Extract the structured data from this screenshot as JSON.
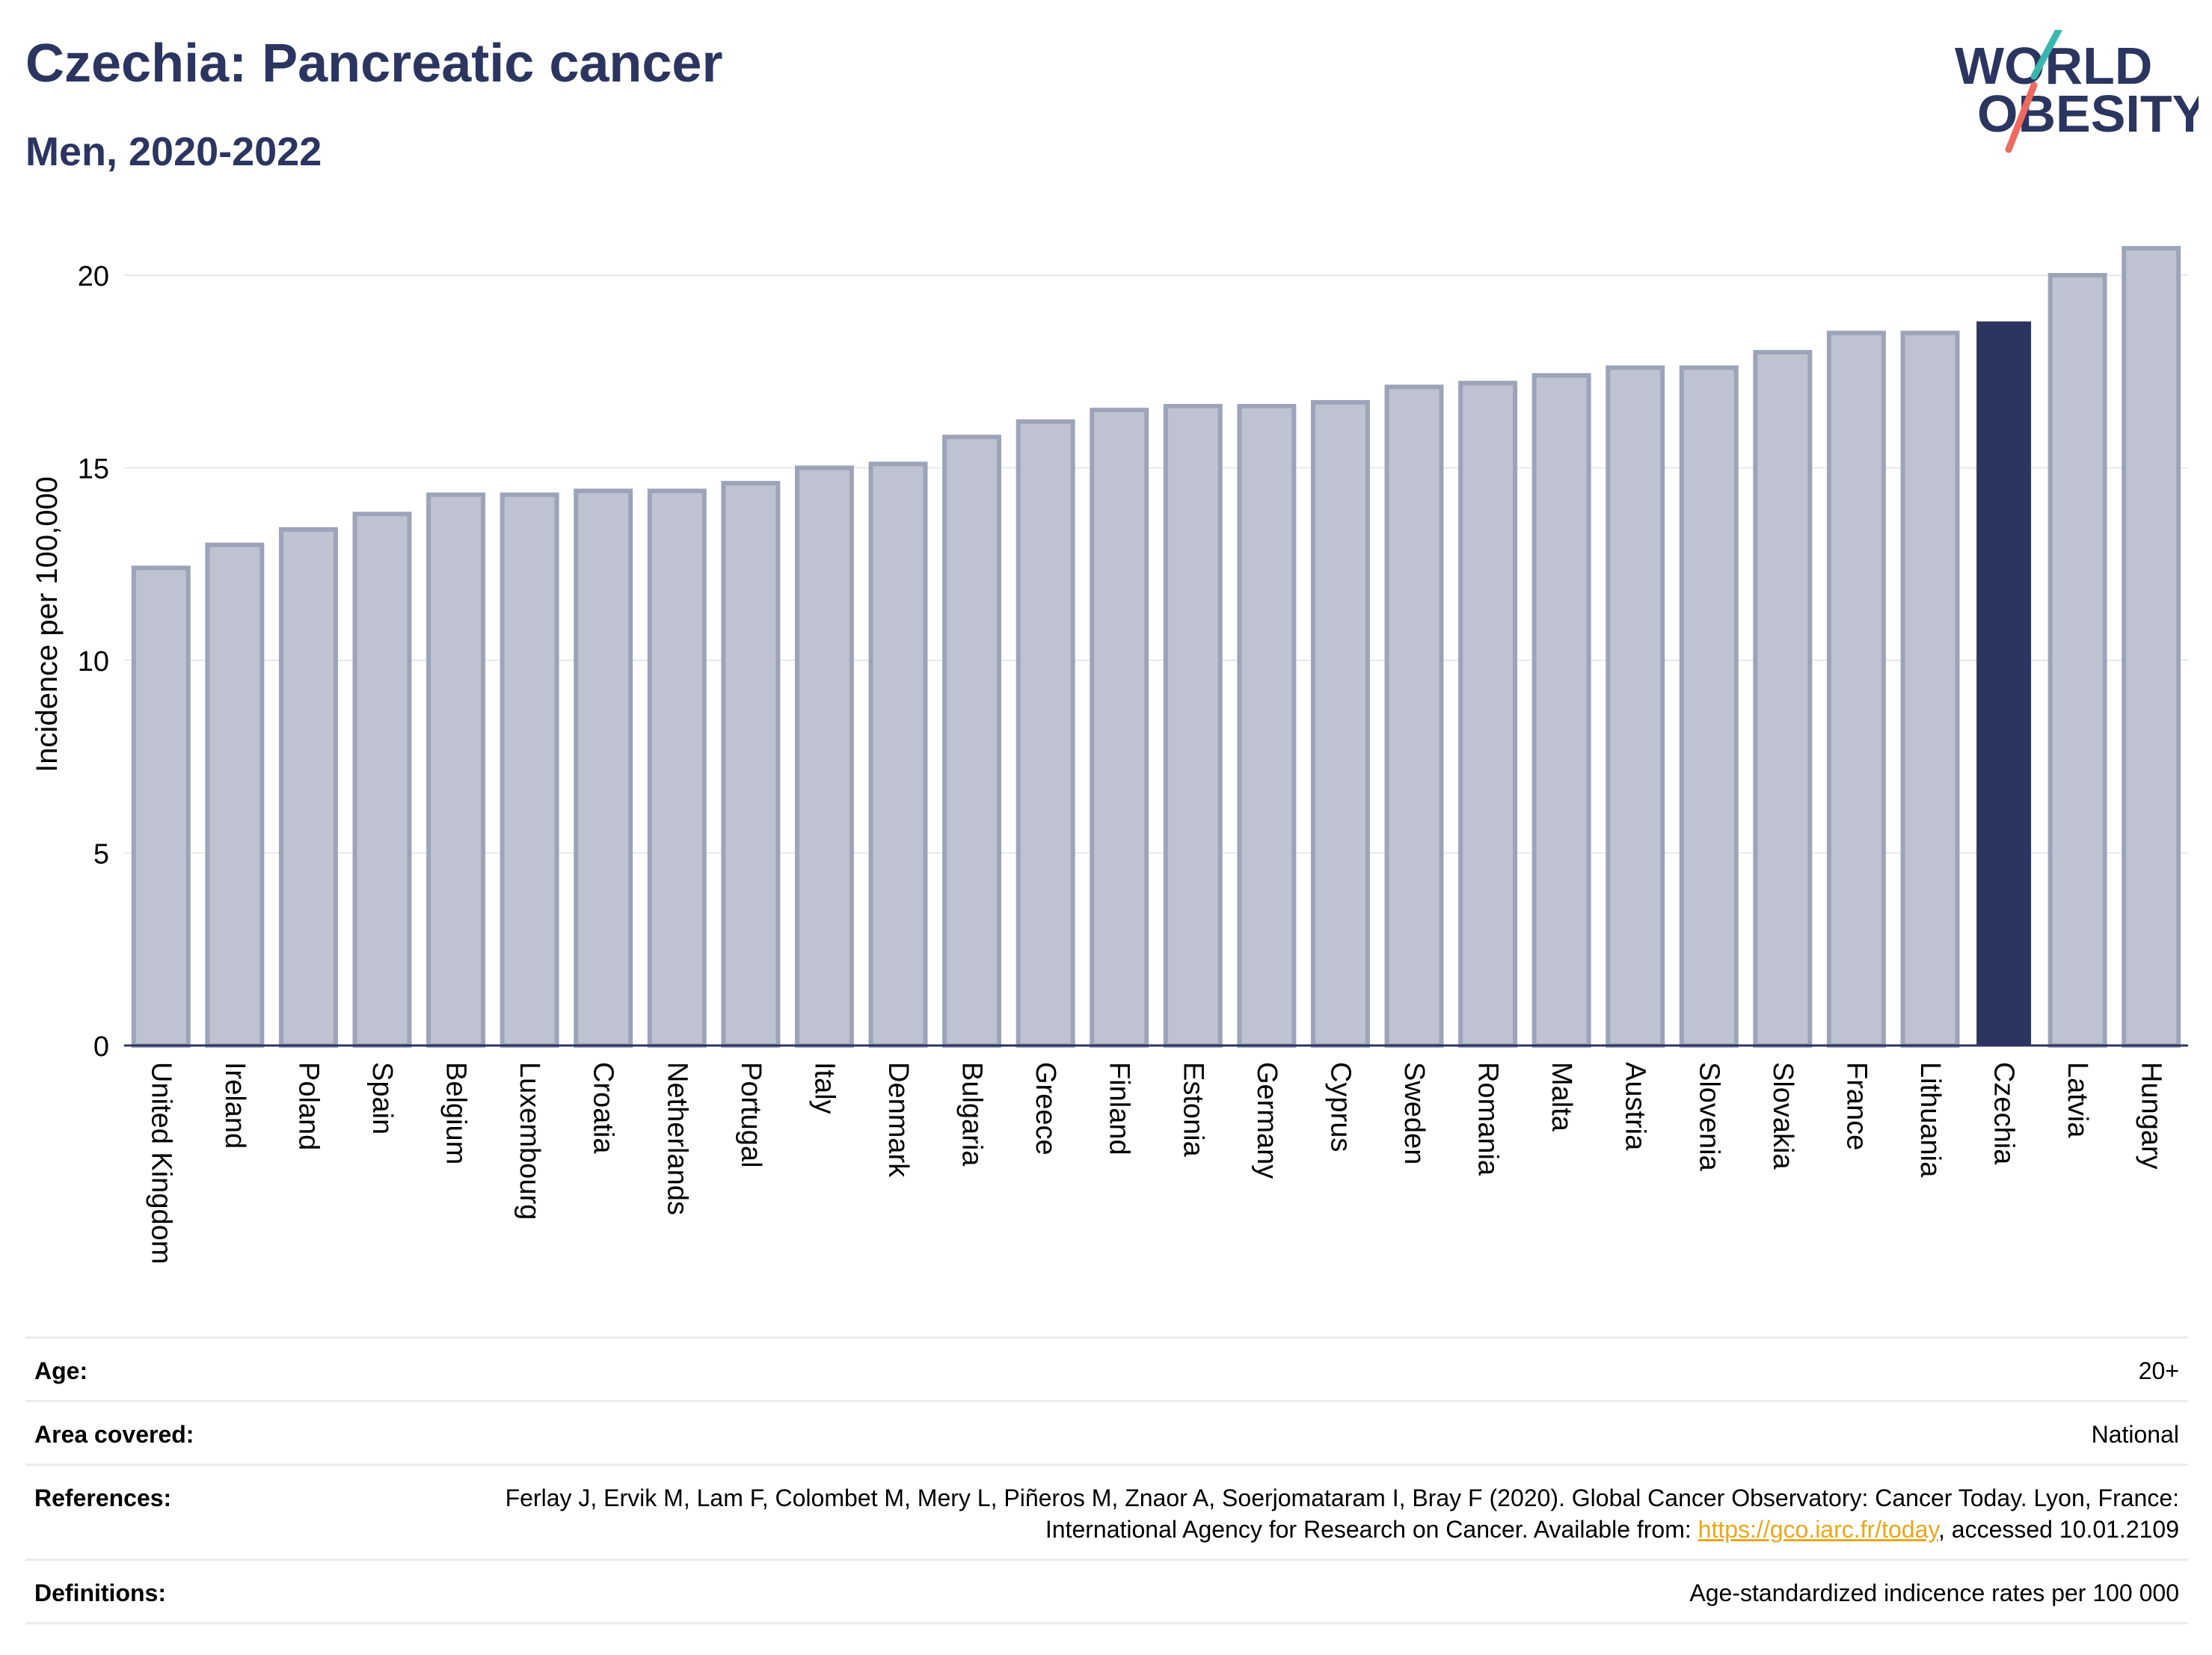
{
  "header": {
    "title": "Czechia: Pancreatic cancer",
    "subtitle": "Men, 2020-2022",
    "logo_line1": "WORLD",
    "logo_line2": "OBESITY"
  },
  "chart_data": {
    "type": "bar",
    "ylabel": "Incidence per 100,000",
    "xlabel": "",
    "ylim": [
      0,
      21
    ],
    "yticks": [
      0,
      5,
      10,
      15,
      20
    ],
    "grid": true,
    "highlight": "Czechia",
    "colors": {
      "bar": "#bfc3d1",
      "bar_edge": "#9da3b8",
      "highlight": "#2b3560"
    },
    "categories": [
      "United Kingdom",
      "Ireland",
      "Poland",
      "Spain",
      "Belgium",
      "Luxembourg",
      "Croatia",
      "Netherlands",
      "Portugal",
      "Italy",
      "Denmark",
      "Bulgaria",
      "Greece",
      "Finland",
      "Estonia",
      "Germany",
      "Cyprus",
      "Sweden",
      "Romania",
      "Malta",
      "Austria",
      "Slovenia",
      "Slovakia",
      "France",
      "Lithuania",
      "Czechia",
      "Latvia",
      "Hungary"
    ],
    "values": [
      12.4,
      13.0,
      13.4,
      13.8,
      14.3,
      14.3,
      14.4,
      14.4,
      14.6,
      15.0,
      15.1,
      15.8,
      16.2,
      16.5,
      16.6,
      16.6,
      16.7,
      17.1,
      17.2,
      17.4,
      17.6,
      17.6,
      18.0,
      18.5,
      18.5,
      18.8,
      20.0,
      20.7
    ]
  },
  "info": {
    "age_label": "Age:",
    "age_value": "20+",
    "area_label": "Area covered:",
    "area_value": "National",
    "references_label": "References:",
    "references_text": "Ferlay J, Ervik M, Lam F, Colombet M, Mery L, Piñeros M, Znaor A, Soerjomataram I, Bray F (2020). Global Cancer Observatory: Cancer Today. Lyon, France: International Agency for Research on Cancer. Available from: ",
    "references_link": "https://gco.iarc.fr/today",
    "references_tail": ", accessed 10.01.2109",
    "definitions_label": "Definitions:",
    "definitions_value": "Age-standardized indicence rates per 100 000"
  }
}
